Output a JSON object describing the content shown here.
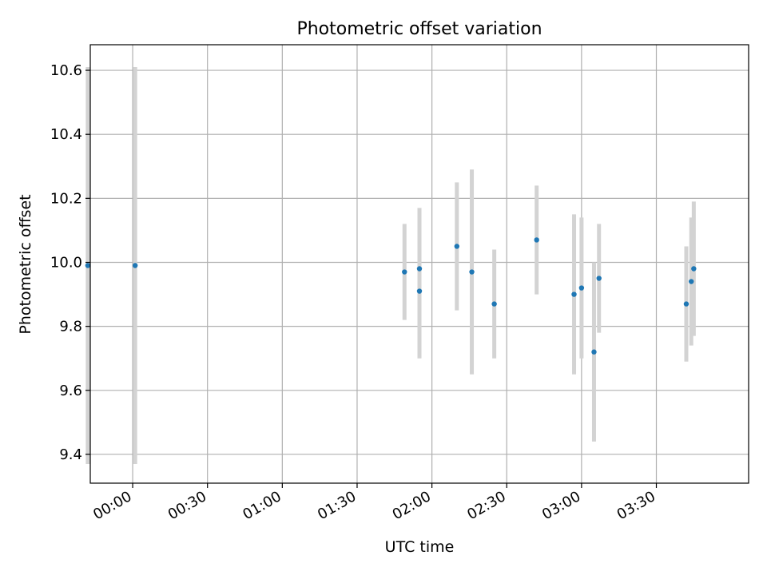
{
  "chart_data": {
    "type": "scatter",
    "title": "Photometric offset variation",
    "xlabel": "UTC time",
    "ylabel": "Photometric offset",
    "x_axis_type": "time",
    "xlim": [
      "-00:17",
      "04:07"
    ],
    "ylim": [
      9.31,
      10.68
    ],
    "x_ticks": [
      "00:00",
      "00:30",
      "01:00",
      "01:30",
      "02:00",
      "02:30",
      "03:00",
      "03:30"
    ],
    "y_ticks": [
      "9.4",
      "9.6",
      "9.8",
      "10.0",
      "10.2",
      "10.4",
      "10.6"
    ],
    "y_tick_values": [
      9.4,
      9.6,
      9.8,
      10.0,
      10.2,
      10.4,
      10.6
    ],
    "grid": true,
    "point_color": "#1f77b4",
    "errorbar_color": "#d3d3d3",
    "points": [
      {
        "x": "-00:18",
        "y": 9.99,
        "err": 0.62
      },
      {
        "x": "00:01",
        "y": 9.99,
        "err": 0.62
      },
      {
        "x": "01:49",
        "y": 9.97,
        "err": 0.15
      },
      {
        "x": "01:55",
        "y": 9.98,
        "err": 0.19
      },
      {
        "x": "01:55",
        "y": 9.91,
        "err": 0.21
      },
      {
        "x": "02:10",
        "y": 10.05,
        "err": 0.2
      },
      {
        "x": "02:16",
        "y": 9.97,
        "err": 0.32
      },
      {
        "x": "02:25",
        "y": 9.87,
        "err": 0.17
      },
      {
        "x": "02:42",
        "y": 10.07,
        "err": 0.17
      },
      {
        "x": "02:57",
        "y": 9.9,
        "err": 0.25
      },
      {
        "x": "03:00",
        "y": 9.92,
        "err": 0.22
      },
      {
        "x": "03:05",
        "y": 9.72,
        "err": 0.28
      },
      {
        "x": "03:07",
        "y": 9.95,
        "err": 0.17
      },
      {
        "x": "03:42",
        "y": 9.87,
        "err": 0.18
      },
      {
        "x": "03:44",
        "y": 9.94,
        "err": 0.2
      },
      {
        "x": "03:45",
        "y": 9.98,
        "err": 0.21
      }
    ]
  }
}
